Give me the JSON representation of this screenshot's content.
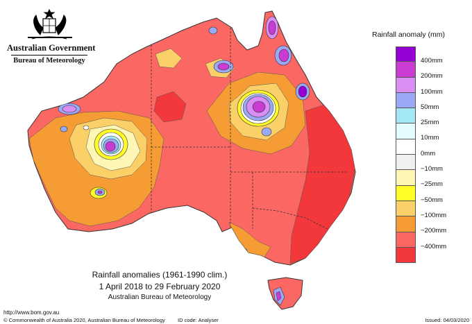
{
  "header": {
    "org_title": "Australian Government",
    "org_subtitle": "Bureau of Meteorology",
    "coat_of_arms_icon": "coat-of-arms-icon"
  },
  "legend": {
    "title": "Rainfall anomaly (mm)",
    "items": [
      {
        "label": "400mm",
        "color": "#9400d3"
      },
      {
        "label": "200mm",
        "color": "#c83cd2"
      },
      {
        "label": "100mm",
        "color": "#d88ef5"
      },
      {
        "label": "50mm",
        "color": "#9aa8f5"
      },
      {
        "label": "25mm",
        "color": "#a4e8f6"
      },
      {
        "label": "10mm",
        "color": "#e6fbfd"
      },
      {
        "label": "0mm",
        "color": "#ffffff"
      },
      {
        "label": "−10mm",
        "color": "#f0f0f0"
      },
      {
        "label": "−25mm",
        "color": "#fdf6b4"
      },
      {
        "label": "−50mm",
        "color": "#fffc28"
      },
      {
        "label": "−100mm",
        "color": "#fcd068"
      },
      {
        "label": "−200mm",
        "color": "#f59c34"
      },
      {
        "label": "−400mm",
        "color": "#fb6763"
      },
      {
        "label": "",
        "color": "#f3383b"
      }
    ]
  },
  "caption": {
    "title": "Rainfall anomalies (1961-1990 clim.)",
    "period": "1 April 2018 to 29 February 2020",
    "source": "Australian Bureau of Meteorology"
  },
  "url": "http://www.bom.gov.au",
  "footer": {
    "copyright": "© Commonwealth of Australia 2020, Australian Bureau of Meteorology",
    "id_code": "ID code: Analyser",
    "issued": "Issued: 04/03/2020"
  }
}
